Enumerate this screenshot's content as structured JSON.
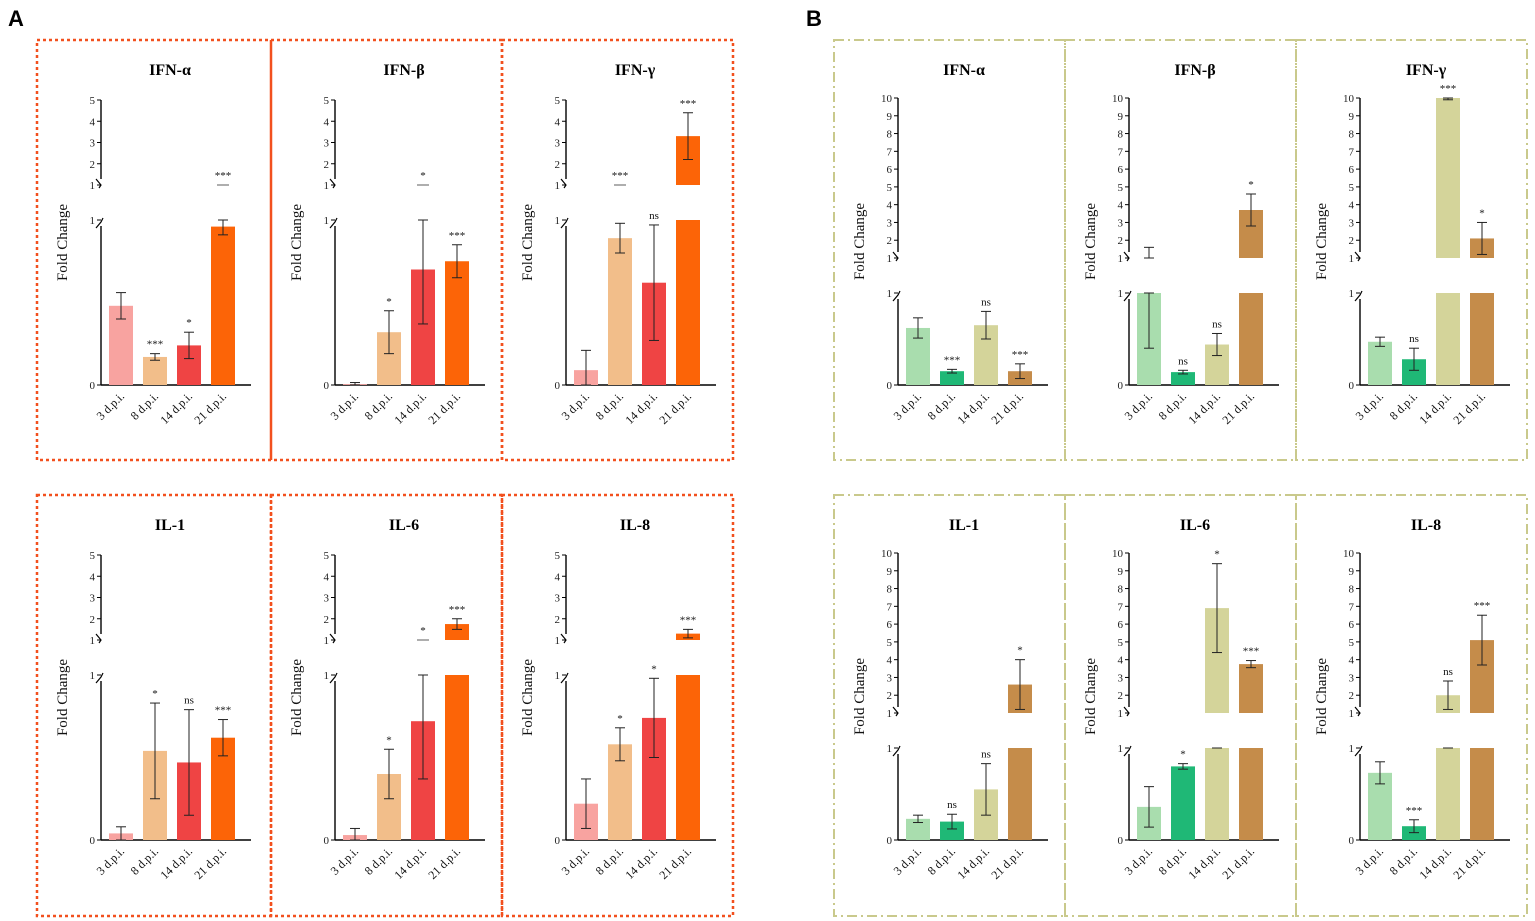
{
  "panel_labels": [
    "A",
    "B"
  ],
  "colors": {
    "A": [
      "#F8A3A0",
      "#F2BE8A",
      "#EF4444",
      "#FC6407"
    ],
    "B": [
      "#A9DDAE",
      "#1FB876",
      "#D4D49A",
      "#C58C4A"
    ],
    "border_A": "#F2501E",
    "border_B": "#C9C98C"
  },
  "chart_data": [
    {
      "group": "A",
      "row": 0,
      "col": 0,
      "type": "bar",
      "title": "IFN-α",
      "ylabel": "Fold Change",
      "categories": [
        "3 d.p.i.",
        "8 d.p.i.",
        "14 d.p.i.",
        "21 d.p.i."
      ],
      "values": [
        0.48,
        0.17,
        0.24,
        0.96
      ],
      "errors": [
        0.08,
        0.02,
        0.08,
        0.05
      ],
      "significance": [
        "",
        "***",
        "*",
        "***"
      ],
      "lower_ticks": [
        "0",
        "1"
      ],
      "upper_ticks": [
        "1",
        "2",
        "3",
        "4",
        "5"
      ],
      "lower_max": 1,
      "upper_range": [
        1,
        5
      ],
      "upper_stubs": [
        {
          "index": 3,
          "value": 1.0
        }
      ]
    },
    {
      "group": "A",
      "row": 0,
      "col": 1,
      "type": "bar",
      "title": "IFN-β",
      "ylabel": "Fold Change",
      "categories": [
        "3 d.p.i.",
        "8 d.p.i.",
        "14 d.p.i.",
        "21 d.p.i."
      ],
      "values": [
        0.005,
        0.32,
        0.7,
        0.75
      ],
      "errors": [
        0.01,
        0.13,
        0.33,
        0.1
      ],
      "significance": [
        "",
        "*",
        "*",
        "***"
      ],
      "lower_ticks": [
        "0",
        "1"
      ],
      "upper_ticks": [
        "1",
        "2",
        "3",
        "4",
        "5"
      ],
      "lower_max": 1,
      "upper_range": [
        1,
        5
      ],
      "upper_stubs": [
        {
          "index": 2,
          "value": 1.0
        }
      ]
    },
    {
      "group": "A",
      "row": 0,
      "col": 2,
      "type": "bar",
      "title": "IFN-γ",
      "ylabel": "Fold Change",
      "categories": [
        "3 d.p.i.",
        "8 d.p.i.",
        "14 d.p.i.",
        "21 d.p.i."
      ],
      "values": [
        0.09,
        0.89,
        0.62,
        3.3
      ],
      "errors": [
        0.12,
        0.09,
        0.35,
        1.1
      ],
      "significance": [
        "",
        "***",
        "ns",
        "***"
      ],
      "lower_ticks": [
        "0",
        "1"
      ],
      "upper_ticks": [
        "1",
        "2",
        "3",
        "4",
        "5"
      ],
      "lower_max": 1,
      "upper_range": [
        1,
        5
      ],
      "upper_stubs": [
        {
          "index": 1,
          "value": 1.0
        }
      ]
    },
    {
      "group": "A",
      "row": 1,
      "col": 0,
      "type": "bar",
      "title": "IL-1",
      "ylabel": "Fold Change",
      "categories": [
        "3 d.p.i.",
        "8 d.p.i.",
        "14 d.p.i.",
        "21 d.p.i."
      ],
      "values": [
        0.04,
        0.54,
        0.47,
        0.62
      ],
      "errors": [
        0.04,
        0.29,
        0.32,
        0.11
      ],
      "significance": [
        "",
        "*",
        "ns",
        "***"
      ],
      "lower_ticks": [
        "0",
        "1"
      ],
      "upper_ticks": [
        "1",
        "2",
        "3",
        "4",
        "5"
      ],
      "lower_max": 1,
      "upper_range": [
        1,
        5
      ],
      "upper_stubs": []
    },
    {
      "group": "A",
      "row": 1,
      "col": 1,
      "type": "bar",
      "title": "IL-6",
      "ylabel": "Fold Change",
      "categories": [
        "3 d.p.i.",
        "8 d.p.i.",
        "14 d.p.i.",
        "21 d.p.i."
      ],
      "values": [
        0.03,
        0.4,
        0.72,
        1.75
      ],
      "errors": [
        0.04,
        0.15,
        0.35,
        0.25
      ],
      "significance": [
        "",
        "*",
        "*",
        "***"
      ],
      "lower_ticks": [
        "0",
        "1"
      ],
      "upper_ticks": [
        "1",
        "2",
        "3",
        "4",
        "5"
      ],
      "lower_max": 1,
      "upper_range": [
        1,
        5
      ],
      "upper_stubs": [
        {
          "index": 2,
          "value": 1.0
        }
      ]
    },
    {
      "group": "A",
      "row": 1,
      "col": 2,
      "type": "bar",
      "title": "IL-8",
      "ylabel": "Fold Change",
      "categories": [
        "3 d.p.i.",
        "8 d.p.i.",
        "14 d.p.i.",
        "21 d.p.i."
      ],
      "values": [
        0.22,
        0.58,
        0.74,
        1.3
      ],
      "errors": [
        0.15,
        0.1,
        0.24,
        0.2
      ],
      "significance": [
        "",
        "*",
        "*",
        "***"
      ],
      "lower_ticks": [
        "0",
        "1"
      ],
      "upper_ticks": [
        "1",
        "2",
        "3",
        "4",
        "5"
      ],
      "lower_max": 1,
      "upper_range": [
        1,
        5
      ],
      "upper_stubs": []
    },
    {
      "group": "B",
      "row": 0,
      "col": 0,
      "type": "bar",
      "title": "IFN-α",
      "ylabel": "Fold Change",
      "categories": [
        "3 d.p.i.",
        "8 d.p.i.",
        "14 d.p.i.",
        "21 d.p.i."
      ],
      "values": [
        0.62,
        0.15,
        0.65,
        0.15
      ],
      "errors": [
        0.11,
        0.02,
        0.15,
        0.08
      ],
      "significance": [
        "",
        "***",
        "ns",
        "***"
      ],
      "lower_ticks": [
        "0",
        "1"
      ],
      "upper_ticks": [
        "1",
        "2",
        "3",
        "4",
        "5",
        "6",
        "7",
        "8",
        "9",
        "10"
      ],
      "lower_max": 1,
      "upper_range": [
        1,
        10
      ],
      "upper_stubs": []
    },
    {
      "group": "B",
      "row": 0,
      "col": 1,
      "type": "bar",
      "title": "IFN-β",
      "ylabel": "Fold Change",
      "categories": [
        "3 d.p.i.",
        "8 d.p.i.",
        "14 d.p.i.",
        "21 d.p.i."
      ],
      "values": [
        1.0,
        0.14,
        0.44,
        3.7
      ],
      "errors": [
        0.6,
        0.02,
        0.12,
        0.9
      ],
      "significance": [
        "",
        "ns",
        "ns",
        "*"
      ],
      "lower_ticks": [
        "0",
        "1"
      ],
      "upper_ticks": [
        "1",
        "2",
        "3",
        "4",
        "5",
        "6",
        "7",
        "8",
        "9",
        "10"
      ],
      "lower_max": 1,
      "upper_range": [
        1,
        10
      ],
      "upper_stubs": [
        {
          "index": 0,
          "value": 1.0,
          "err": 0.6
        }
      ]
    },
    {
      "group": "B",
      "row": 0,
      "col": 2,
      "type": "bar",
      "title": "IFN-γ",
      "ylabel": "Fold Change",
      "categories": [
        "3 d.p.i.",
        "8 d.p.i.",
        "14 d.p.i.",
        "21 d.p.i."
      ],
      "values": [
        0.47,
        0.28,
        10.0,
        2.1
      ],
      "errors": [
        0.05,
        0.12,
        0.1,
        0.9
      ],
      "significance": [
        "",
        "ns",
        "***",
        "*"
      ],
      "lower_ticks": [
        "0",
        "1"
      ],
      "upper_ticks": [
        "1",
        "2",
        "3",
        "4",
        "5",
        "6",
        "7",
        "8",
        "9",
        "10"
      ],
      "lower_max": 1,
      "upper_range": [
        1,
        10
      ],
      "upper_stubs": []
    },
    {
      "group": "B",
      "row": 1,
      "col": 0,
      "type": "bar",
      "title": "IL-1",
      "ylabel": "Fold Change",
      "categories": [
        "3 d.p.i.",
        "8 d.p.i.",
        "14 d.p.i.",
        "21 d.p.i."
      ],
      "values": [
        0.23,
        0.2,
        0.55,
        2.6
      ],
      "errors": [
        0.04,
        0.08,
        0.28,
        1.4
      ],
      "significance": [
        "",
        "ns",
        "ns",
        "*"
      ],
      "lower_ticks": [
        "0",
        "1"
      ],
      "upper_ticks": [
        "1",
        "2",
        "3",
        "4",
        "5",
        "6",
        "7",
        "8",
        "9",
        "10"
      ],
      "lower_max": 1,
      "upper_range": [
        1,
        10
      ],
      "upper_stubs": []
    },
    {
      "group": "B",
      "row": 1,
      "col": 1,
      "type": "bar",
      "title": "IL-6",
      "ylabel": "Fold Change",
      "categories": [
        "3 d.p.i.",
        "8 d.p.i.",
        "14 d.p.i.",
        "21 d.p.i."
      ],
      "values": [
        0.36,
        0.8,
        1.0,
        3.75
      ],
      "errors": [
        0.22,
        0.03,
        0.0,
        0.2
      ],
      "significance": [
        "",
        "*",
        "*",
        "***"
      ],
      "lower_ticks": [
        "0",
        "1"
      ],
      "upper_ticks": [
        "1",
        "2",
        "3",
        "4",
        "5",
        "6",
        "7",
        "8",
        "9",
        "10"
      ],
      "lower_max": 1,
      "upper_range": [
        1,
        10
      ],
      "upper_stubs": [
        {
          "index": 2,
          "value": 6.9,
          "err": 2.5
        }
      ]
    },
    {
      "group": "B",
      "row": 1,
      "col": 2,
      "type": "bar",
      "title": "IL-8",
      "ylabel": "Fold Change",
      "categories": [
        "3 d.p.i.",
        "8 d.p.i.",
        "14 d.p.i.",
        "21 d.p.i."
      ],
      "values": [
        0.73,
        0.15,
        1.0,
        5.1
      ],
      "errors": [
        0.12,
        0.07,
        0.0,
        1.4
      ],
      "significance": [
        "",
        "***",
        "ns",
        "***"
      ],
      "lower_ticks": [
        "0",
        "1"
      ],
      "upper_ticks": [
        "1",
        "2",
        "3",
        "4",
        "5",
        "6",
        "7",
        "8",
        "9",
        "10"
      ],
      "lower_max": 1,
      "upper_range": [
        1,
        10
      ],
      "upper_stubs": [
        {
          "index": 2,
          "value": 2.0,
          "err": 0.8
        }
      ]
    }
  ]
}
